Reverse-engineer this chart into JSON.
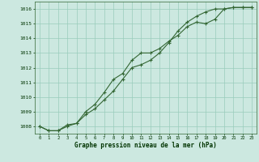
{
  "x": [
    0,
    1,
    2,
    3,
    4,
    5,
    6,
    7,
    8,
    9,
    10,
    11,
    12,
    13,
    14,
    15,
    16,
    17,
    18,
    19,
    20,
    21,
    22,
    23
  ],
  "line1": [
    1008.0,
    1007.7,
    1007.7,
    1008.0,
    1008.2,
    1009.0,
    1009.5,
    1010.3,
    1011.2,
    1011.6,
    1012.5,
    1013.0,
    1013.0,
    1013.3,
    1013.8,
    1014.2,
    1014.8,
    1015.1,
    1015.0,
    1015.3,
    1016.0,
    1016.1,
    1016.1,
    1016.1
  ],
  "line2": [
    1008.0,
    1007.7,
    1007.7,
    1008.1,
    1008.2,
    1008.8,
    1009.2,
    1009.8,
    1010.4,
    1011.2,
    1012.0,
    1012.2,
    1012.5,
    1013.0,
    1013.7,
    1014.5,
    1015.1,
    1015.5,
    1015.8,
    1016.0,
    1016.0,
    1016.1,
    1016.1,
    1016.1
  ],
  "bg_color": "#cce8e0",
  "grid_color": "#99ccbb",
  "line_color": "#336633",
  "text_color": "#003300",
  "xlabel": "Graphe pression niveau de la mer (hPa)",
  "ylim_min": 1007.5,
  "ylim_max": 1016.5,
  "yticks": [
    1008,
    1009,
    1010,
    1011,
    1012,
    1013,
    1014,
    1015,
    1016
  ]
}
